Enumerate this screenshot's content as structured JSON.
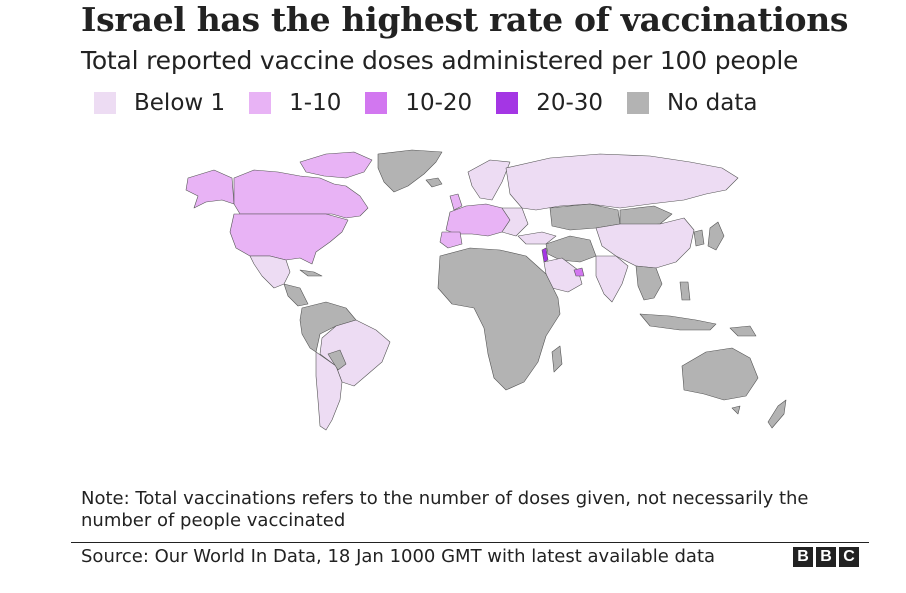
{
  "header": {
    "title": "Israel has the highest rate of vaccinations",
    "subtitle": "Total reported vaccine doses administered per 100 people"
  },
  "legend": [
    {
      "label": "Below 1",
      "color": "#eddcf3"
    },
    {
      "label": "1-10",
      "color": "#e8b3f5"
    },
    {
      "label": "10-20",
      "color": "#d277f0"
    },
    {
      "label": "20-30",
      "color": "#a436e4"
    },
    {
      "label": "No data",
      "color": "#b3b3b3"
    }
  ],
  "colors": {
    "below1": "#eddcf3",
    "range1_10": "#e8b3f5",
    "range10_20": "#d277f0",
    "range20_30": "#a436e4",
    "nodata": "#b3b3b3",
    "border": "#555555"
  },
  "footer": {
    "note": "Note: Total vaccinations refers to the number of doses given, not necessarily the number of people vaccinated",
    "source": "Source: Our World In Data, 18 Jan 1000 GMT with latest available data",
    "brand": [
      "B",
      "B",
      "C"
    ]
  }
}
